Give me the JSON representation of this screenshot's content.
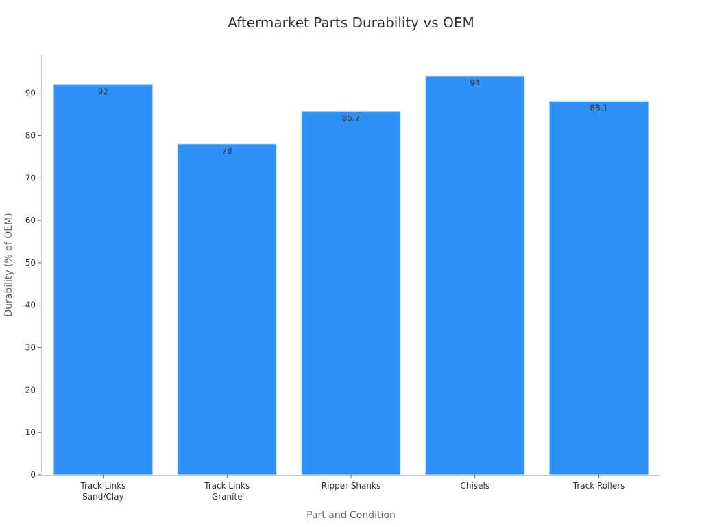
{
  "chart_data": {
    "type": "bar",
    "title": "Aftermarket Parts Durability vs OEM",
    "xlabel": "Part and Condition",
    "ylabel": "Durability (% of OEM)",
    "categories": [
      [
        "Track Links",
        "Sand/Clay"
      ],
      [
        "Track Links",
        "Granite"
      ],
      [
        "Ripper Shanks"
      ],
      [
        "Chisels"
      ],
      [
        "Track Rollers"
      ]
    ],
    "values": [
      92,
      78,
      85.7,
      94,
      88.1
    ],
    "data_labels": [
      "92",
      "78",
      "85.7",
      "94",
      "88.1"
    ],
    "ylim": [
      0,
      99
    ],
    "yticks": [
      0,
      10,
      20,
      30,
      40,
      50,
      60,
      70,
      80,
      90
    ],
    "grid": false,
    "legend": "none",
    "bar_color": "#2e91f8",
    "bar_edge_color": "#d9e8f7"
  }
}
